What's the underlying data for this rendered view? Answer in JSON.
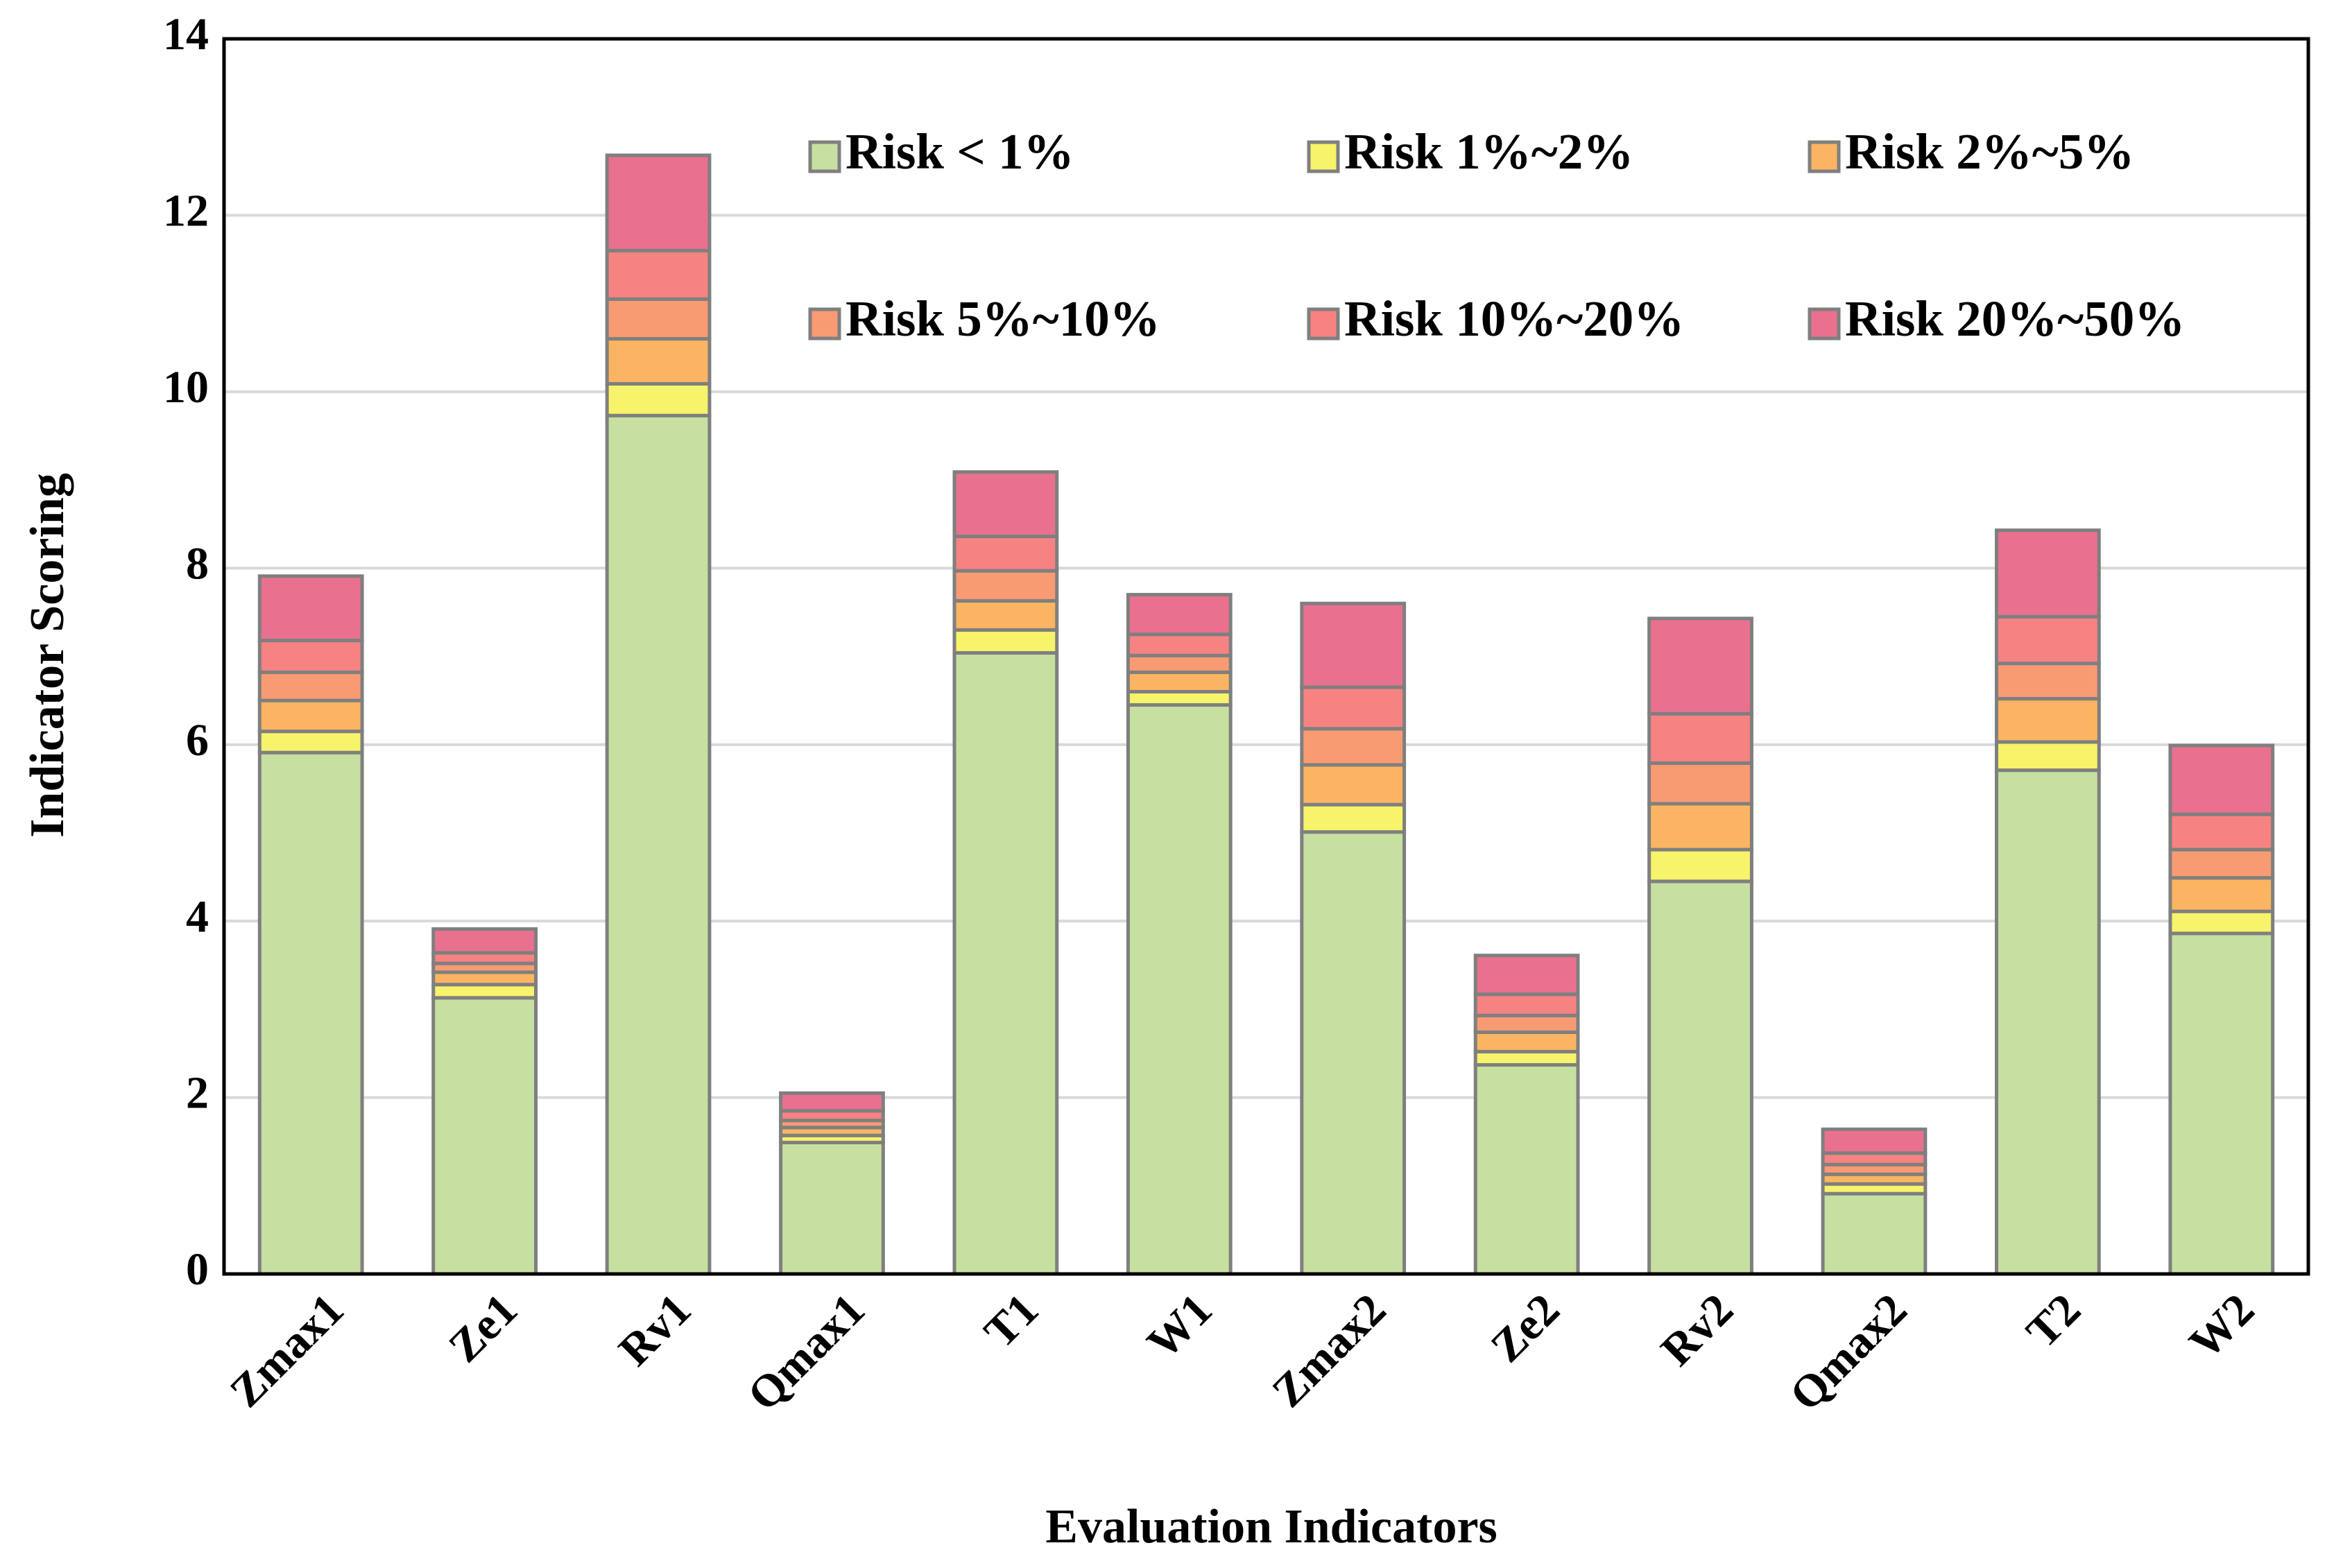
{
  "chart_data": {
    "type": "stacked_bar",
    "x_label": "Evaluation Indicators",
    "y_label": "Indicator Scoring",
    "categories": [
      "Zmax1",
      "Ze1",
      "Rv1",
      "Qmax1",
      "T1",
      "W1",
      "Zmax2",
      "Ze2",
      "Rv2",
      "Qmax2",
      "T2",
      "W2"
    ],
    "series": [
      {
        "name": "Risk < 1%",
        "color": "#c6e0a0",
        "values": [
          5.91,
          3.13,
          9.73,
          1.49,
          7.04,
          6.45,
          5.01,
          2.37,
          4.45,
          0.91,
          5.71,
          3.86
        ]
      },
      {
        "name": "Risk 1%~2%",
        "color": "#f7f36a",
        "values": [
          0.24,
          0.15,
          0.36,
          0.08,
          0.26,
          0.15,
          0.31,
          0.15,
          0.36,
          0.11,
          0.32,
          0.25
        ]
      },
      {
        "name": "Risk 2%~5%",
        "color": "#fbb461",
        "values": [
          0.35,
          0.14,
          0.51,
          0.09,
          0.33,
          0.22,
          0.45,
          0.22,
          0.52,
          0.11,
          0.49,
          0.38
        ]
      },
      {
        "name": "Risk 5%~10%",
        "color": "#f99b72",
        "values": [
          0.32,
          0.1,
          0.45,
          0.08,
          0.34,
          0.19,
          0.41,
          0.19,
          0.46,
          0.11,
          0.4,
          0.32
        ]
      },
      {
        "name": "Risk 10%~20%",
        "color": "#f78282",
        "values": [
          0.36,
          0.12,
          0.55,
          0.11,
          0.39,
          0.24,
          0.47,
          0.24,
          0.56,
          0.13,
          0.53,
          0.4
        ]
      },
      {
        "name": "Risk 20%~50%",
        "color": "#e9718f",
        "values": [
          0.73,
          0.27,
          1.08,
          0.2,
          0.73,
          0.45,
          0.95,
          0.44,
          1.08,
          0.27,
          0.98,
          0.78
        ]
      }
    ],
    "ylim": [
      0,
      14
    ],
    "yticks": [
      0,
      2,
      4,
      6,
      8,
      10,
      12,
      14
    ],
    "grid": true
  }
}
